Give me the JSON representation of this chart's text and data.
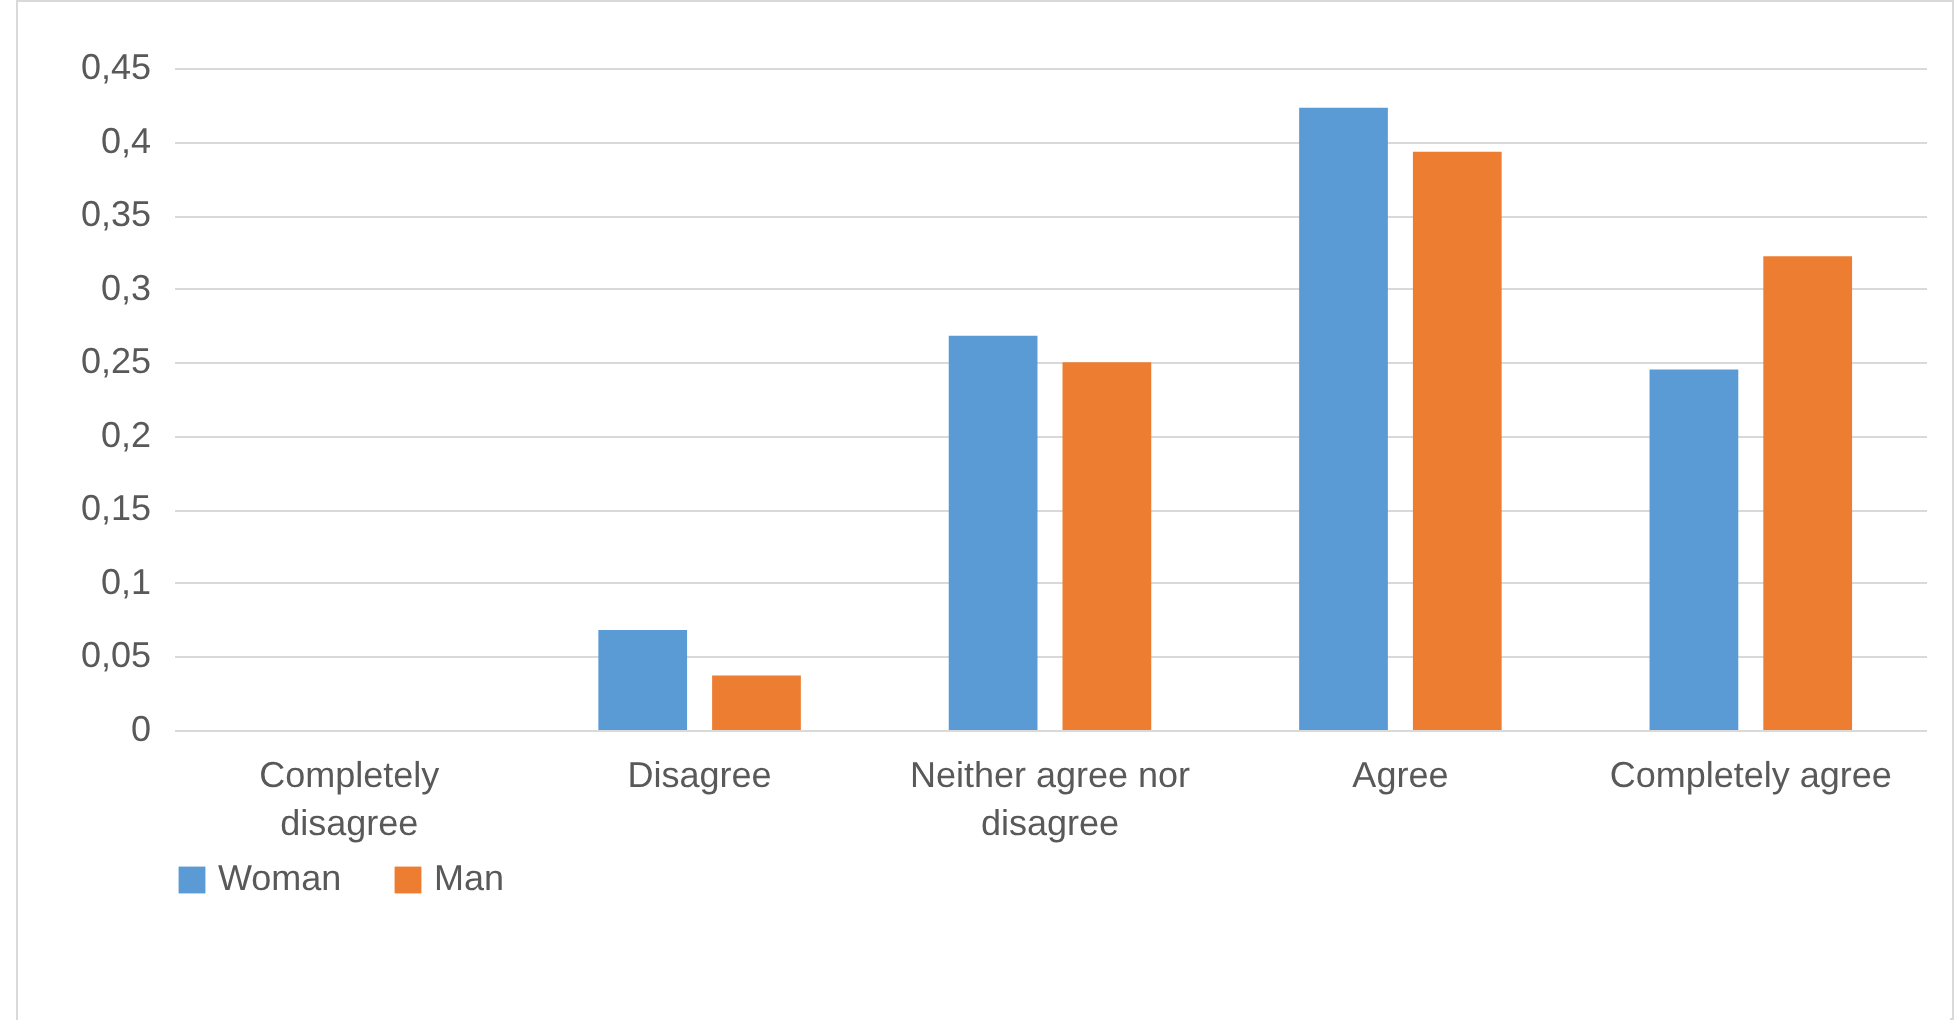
{
  "chart_data": {
    "type": "bar",
    "categories": [
      "Completely disagree",
      "Disagree",
      "Neither agree nor disagree",
      "Agree",
      "Completely agree"
    ],
    "series": [
      {
        "name": "Woman",
        "color": "#5b9bd5",
        "values": [
          0,
          0.068,
          0.268,
          0.423,
          0.245
        ]
      },
      {
        "name": "Man",
        "color": "#ed7d31",
        "values": [
          0,
          0.037,
          0.25,
          0.393,
          0.322
        ]
      }
    ],
    "ylim": [
      0,
      0.45
    ],
    "yticks": [
      {
        "value": 0,
        "label": "0"
      },
      {
        "value": 0.05,
        "label": "0,05"
      },
      {
        "value": 0.1,
        "label": "0,1"
      },
      {
        "value": 0.15,
        "label": "0,15"
      },
      {
        "value": 0.2,
        "label": "0,2"
      },
      {
        "value": 0.25,
        "label": "0,25"
      },
      {
        "value": 0.3,
        "label": "0,3"
      },
      {
        "value": 0.35,
        "label": "0,35"
      },
      {
        "value": 0.4,
        "label": "0,4"
      },
      {
        "value": 0.45,
        "label": "0,45"
      }
    ],
    "grid": "y",
    "legend": "bottom"
  }
}
